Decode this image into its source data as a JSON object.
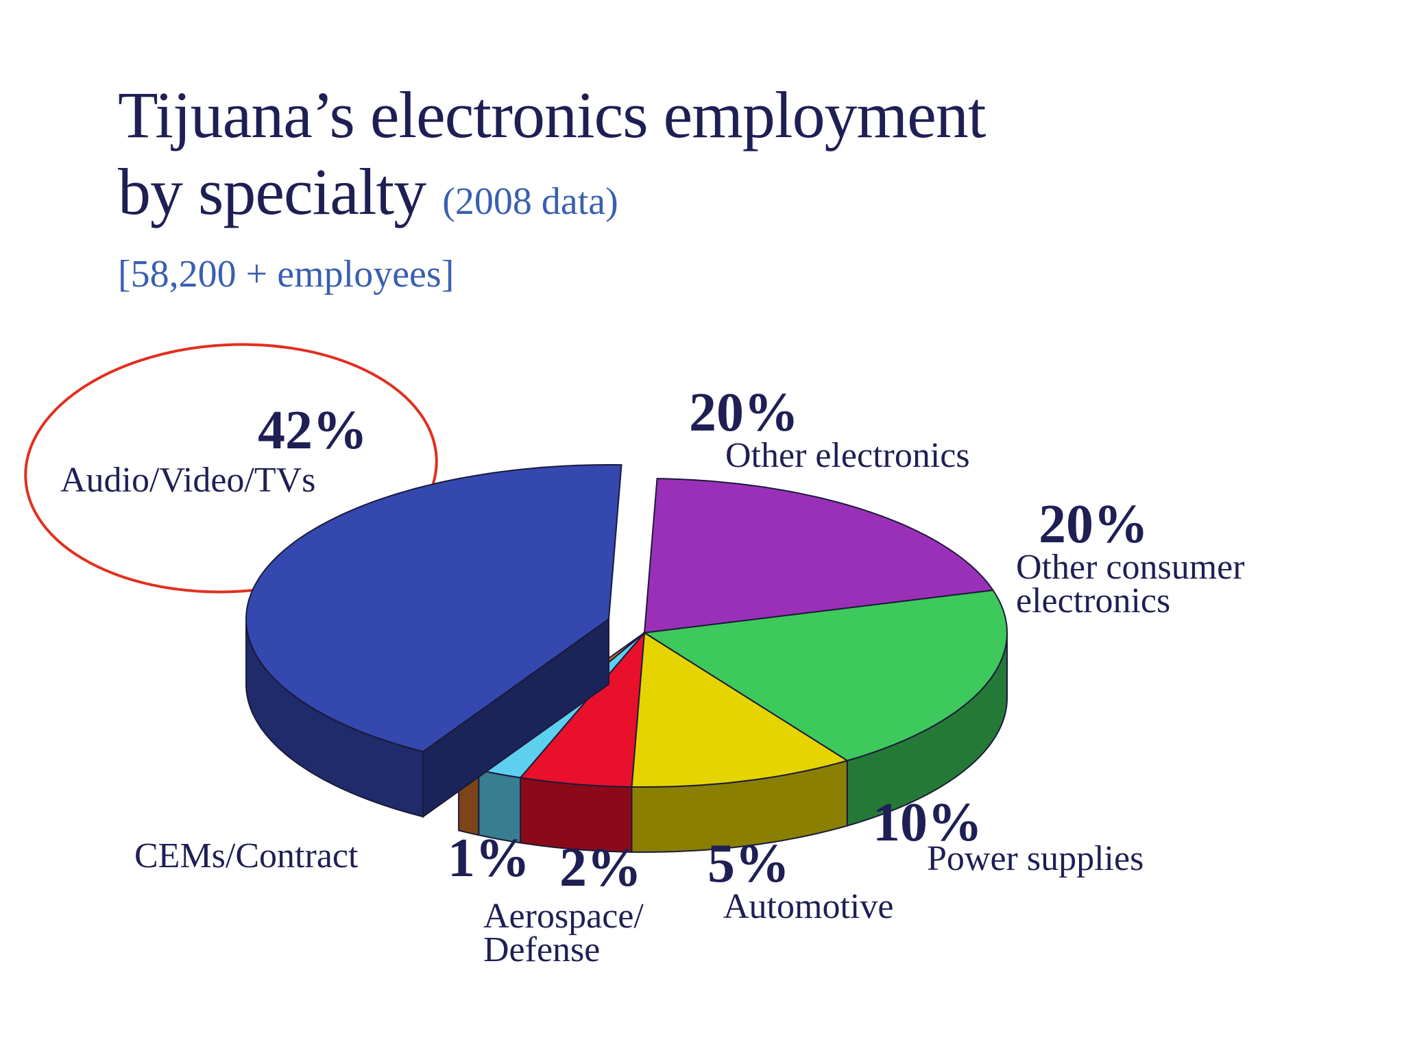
{
  "chart_data": {
    "type": "pie",
    "title": "Tijuana’s electronics employment\nby specialty",
    "subtitle": "(2008 data)",
    "note": "[58,200 + employees]",
    "categories": [
      "Other electronics",
      "Other consumer electronics",
      "Power supplies",
      "Automotive",
      "Aerospace/ Defense",
      "CEMs/Contract",
      "Audio/Video/TVs"
    ],
    "values": [
      20,
      20,
      10,
      5,
      2,
      1,
      42
    ],
    "value_labels": [
      "20%",
      "20%",
      "10%",
      "5%",
      "2%",
      "1%",
      "42%"
    ],
    "colors": [
      "#9b30b8",
      "#3ec95c",
      "#e6d400",
      "#e8102a",
      "#5dd0f0",
      "#d2712a",
      "#3448b0"
    ]
  }
}
